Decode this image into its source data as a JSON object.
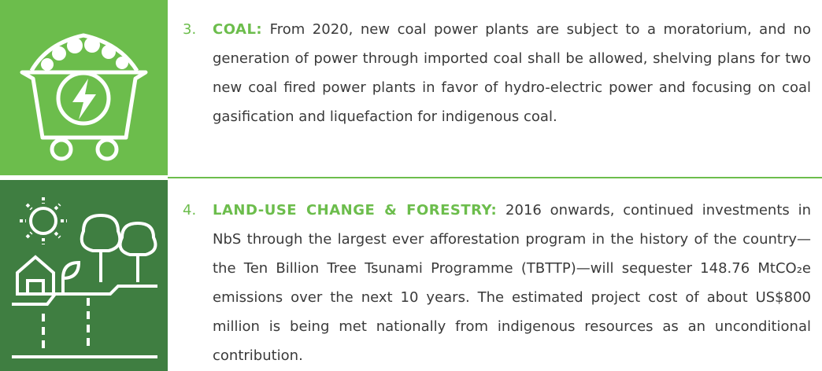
{
  "items": [
    {
      "number": "3.",
      "label": "COAL:",
      "text": "From 2020, new coal power plants are subject to a moratorium, and no generation of power through imported coal shall be allowed, shelving plans for two new coal fired power plants in favor of hydro-electric power and focusing on coal gasification and liquefaction for indigenous coal."
    },
    {
      "number": "4.",
      "label": "LAND-USE CHANGE & FORESTRY:",
      "text": "2016 onwards, continued investments in NbS through the largest ever afforestation program in the history of the country—the Ten Billion Tree Tsunami Programme (TBTTP)—will sequester 148.76 MtCO₂e emissions over the next 10 years. The estimated project cost of about US$800 million is being met nationally from indigenous resources as an unconditional contribution."
    }
  ]
}
